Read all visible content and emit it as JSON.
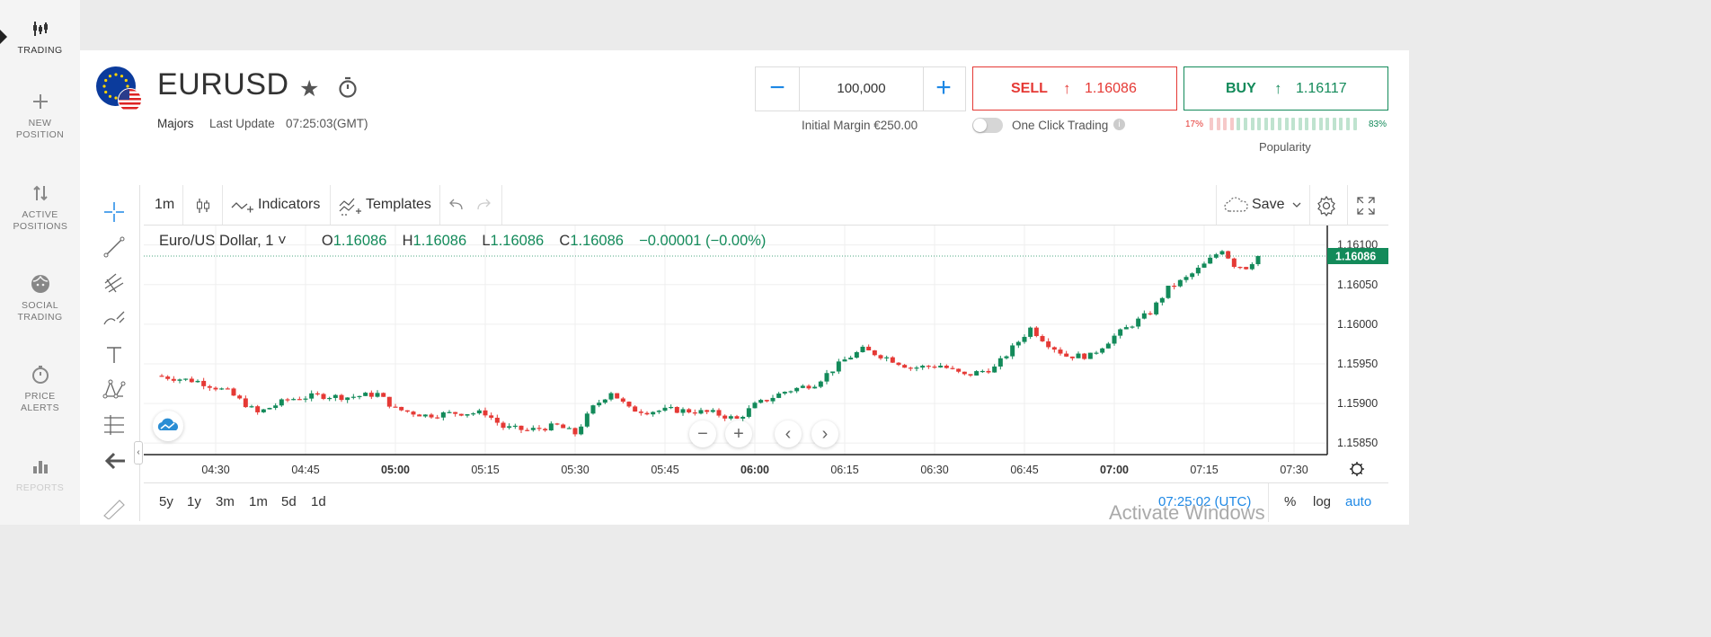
{
  "sidebar": {
    "items": [
      {
        "label": "TRADING",
        "icon": "candlestick-icon"
      },
      {
        "label": "NEW POSITION",
        "icon": "plus-icon"
      },
      {
        "label": "ACTIVE POSITIONS",
        "icon": "updown-arrows-icon"
      },
      {
        "label": "SOCIAL TRADING",
        "icon": "face-icon"
      },
      {
        "label": "PRICE ALERTS",
        "icon": "stopwatch-icon"
      },
      {
        "label": "REPORTS",
        "icon": "bar-chart-icon"
      }
    ]
  },
  "instrument": {
    "symbol": "EURUSD",
    "category": "Majors",
    "last_update_label": "Last Update",
    "last_update_value": "07:25:03(GMT)"
  },
  "order": {
    "quantity": "100,000",
    "initial_margin": "Initial Margin €250.00",
    "sell_label": "SELL",
    "sell_price": "1.16086",
    "buy_label": "BUY",
    "buy_price": "1.16117",
    "one_click_label": "One Click Trading",
    "one_click_enabled": false,
    "popularity_sell": "17%",
    "popularity_buy": "83%",
    "popularity_label": "Popularity",
    "sell_color": "#e53935",
    "buy_color": "#138a5a"
  },
  "chart_toolbar": {
    "interval": "1m",
    "indicators": "Indicators",
    "templates": "Templates",
    "save": "Save"
  },
  "legend": {
    "name": "Euro/US Dollar, 1",
    "o_label": "O",
    "o": "1.16086",
    "h_label": "H",
    "h": "1.16086",
    "l_label": "L",
    "l": "1.16086",
    "c_label": "C",
    "c": "1.16086",
    "change": "−0.00001 (−0.00%)"
  },
  "ranges": [
    "5y",
    "1y",
    "3m",
    "1m",
    "5d",
    "1d"
  ],
  "bottom": {
    "clock": "07:25:02 (UTC)",
    "percent": "%",
    "log": "log",
    "auto": "auto"
  },
  "watermark": "Activate Windows",
  "chart_data": {
    "type": "candlestick",
    "title": "",
    "x_ticks": [
      "04:30",
      "04:45",
      "05:00",
      "05:15",
      "05:30",
      "05:45",
      "06:00",
      "06:15",
      "06:30",
      "06:45",
      "07:00",
      "07:15",
      "07:30"
    ],
    "y_ticks": [
      "1.15850",
      "1.15900",
      "1.15950",
      "1.16000",
      "1.16050",
      "1.16100"
    ],
    "ylim": [
      1.1584,
      1.1612
    ],
    "last_price": "1.16086",
    "close_series": [
      [
        "04:20",
        1.15935
      ],
      [
        "04:27",
        1.15928
      ],
      [
        "04:32",
        1.15915
      ],
      [
        "04:37",
        1.15888
      ],
      [
        "04:42",
        1.15905
      ],
      [
        "04:47",
        1.1591
      ],
      [
        "04:52",
        1.15908
      ],
      [
        "04:57",
        1.15912
      ],
      [
        "05:00",
        1.15893
      ],
      [
        "05:05",
        1.15885
      ],
      [
        "05:10",
        1.15888
      ],
      [
        "05:15",
        1.15888
      ],
      [
        "05:18",
        1.1587
      ],
      [
        "05:22",
        1.15866
      ],
      [
        "05:27",
        1.15872
      ],
      [
        "05:30",
        1.15862
      ],
      [
        "05:33",
        1.15895
      ],
      [
        "05:36",
        1.15915
      ],
      [
        "05:39",
        1.15893
      ],
      [
        "05:42",
        1.1589
      ],
      [
        "05:46",
        1.15892
      ],
      [
        "05:50",
        1.1589
      ],
      [
        "05:53",
        1.15888
      ],
      [
        "05:57",
        1.1588
      ],
      [
        "06:00",
        1.15898
      ],
      [
        "06:05",
        1.15915
      ],
      [
        "06:10",
        1.15925
      ],
      [
        "06:15",
        1.15955
      ],
      [
        "06:18",
        1.15968
      ],
      [
        "06:22",
        1.15958
      ],
      [
        "06:26",
        1.15945
      ],
      [
        "06:31",
        1.15948
      ],
      [
        "06:35",
        1.15935
      ],
      [
        "06:40",
        1.15945
      ],
      [
        "06:43",
        1.1597
      ],
      [
        "06:46",
        1.15995
      ],
      [
        "06:49",
        1.15975
      ],
      [
        "06:52",
        1.1596
      ],
      [
        "06:56",
        1.1596
      ],
      [
        "07:00",
        1.15985
      ],
      [
        "07:03",
        1.16
      ],
      [
        "07:06",
        1.16015
      ],
      [
        "07:09",
        1.16045
      ],
      [
        "07:12",
        1.16058
      ],
      [
        "07:15",
        1.16075
      ],
      [
        "07:18",
        1.16095
      ],
      [
        "07:20",
        1.16075
      ],
      [
        "07:22",
        1.16072
      ],
      [
        "07:24",
        1.16086
      ]
    ]
  }
}
